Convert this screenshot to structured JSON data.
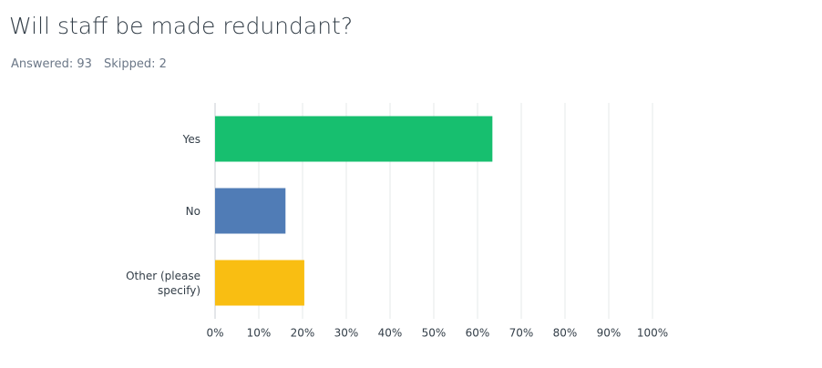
{
  "chart_data": {
    "type": "bar",
    "orientation": "horizontal",
    "title": "Will staff be made redundant?",
    "answered": "Answered: 93",
    "skipped": "Skipped: 2",
    "categories": [
      "Yes",
      "No",
      "Other (please specify)"
    ],
    "values": [
      63.4,
      16.1,
      20.4
    ],
    "colors": [
      "#17bf6f",
      "#507cb6",
      "#f9be12"
    ],
    "xlim": [
      0,
      100
    ],
    "xticks": [
      {
        "value": 0,
        "label": "0%"
      },
      {
        "value": 10,
        "label": "10%"
      },
      {
        "value": 20,
        "label": "20%"
      },
      {
        "value": 30,
        "label": "30%"
      },
      {
        "value": 40,
        "label": "40%"
      },
      {
        "value": 50,
        "label": "50%"
      },
      {
        "value": 60,
        "label": "60%"
      },
      {
        "value": 70,
        "label": "70%"
      },
      {
        "value": 80,
        "label": "80%"
      },
      {
        "value": 90,
        "label": "90%"
      },
      {
        "value": 100,
        "label": "100%"
      }
    ],
    "grid": true
  }
}
